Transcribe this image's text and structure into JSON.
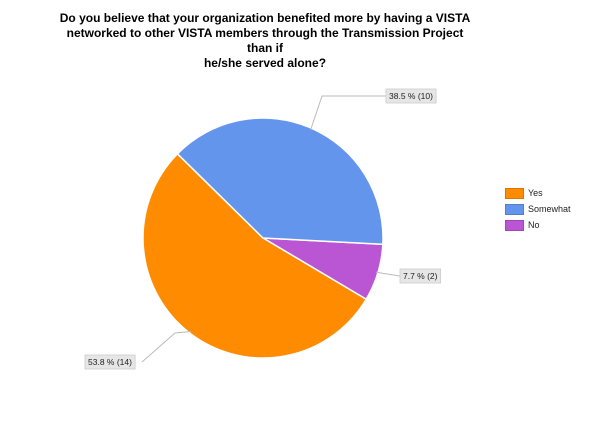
{
  "chart_data": {
    "type": "pie",
    "title": "Do you believe that your organization benefited more by having a VISTA\nnetworked to other VISTA members through the Transmission Project than if\nhe/she served alone?",
    "slices": [
      {
        "label": "Yes",
        "count": 14,
        "percent": 53.8,
        "data_label": "53.8 % (14)",
        "color": "#ff8c00"
      },
      {
        "label": "Somewhat",
        "count": 10,
        "percent": 38.5,
        "data_label": "38.5 % (10)",
        "color": "#6495ed"
      },
      {
        "label": "No",
        "count": 2,
        "percent": 7.7,
        "data_label": "7.7 % (2)",
        "color": "#ba55d3"
      }
    ],
    "legend_position": "right"
  }
}
